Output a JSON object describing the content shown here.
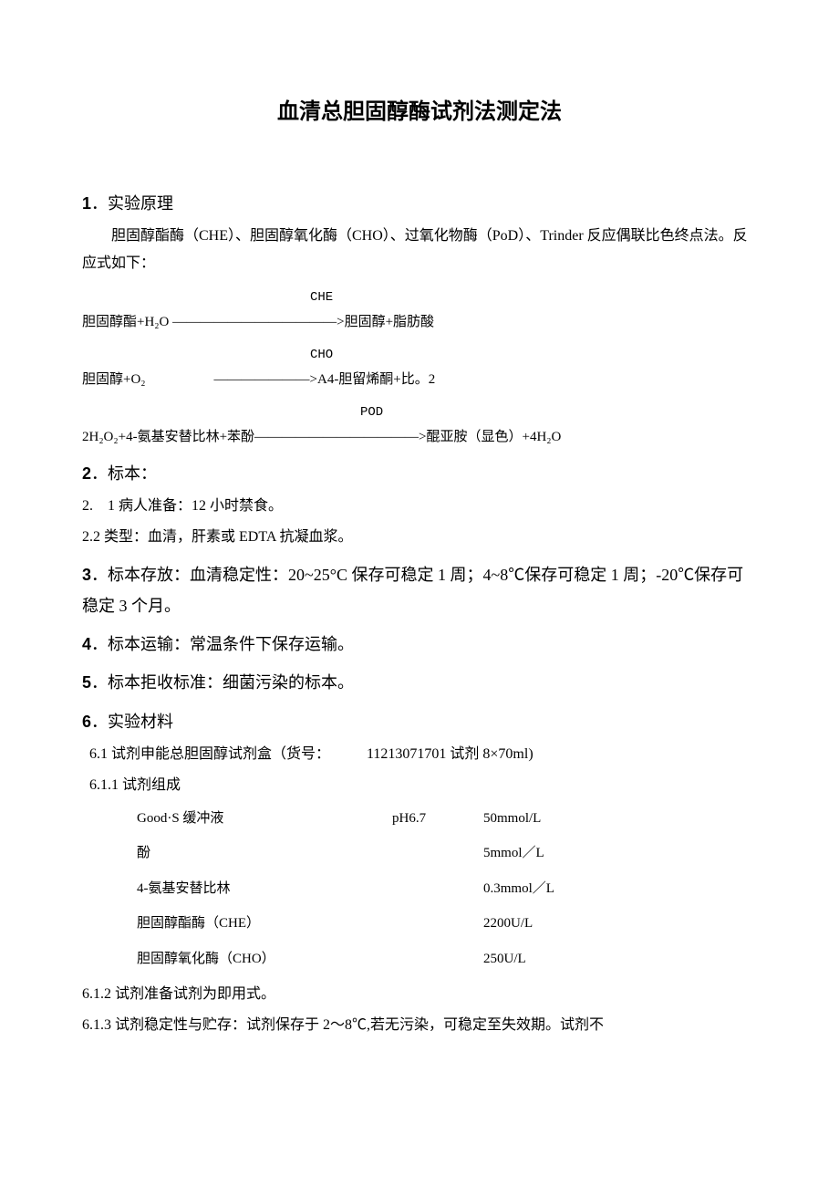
{
  "title": "血清总胆固醇酶试剂法测定法",
  "sections": {
    "s1": {
      "heading_num": "1",
      "heading_text": "．实验原理",
      "para1": "胆固醇酯酶（CHE）、胆固醇氧化酶（CHO）、过氧化物酶（PoD）、Trinder 反应偶联比色终点法。反应式如下：",
      "reaction1_label": "CHE",
      "reaction1": "胆固醇酯+H₂O ――――――――――――>胆固醇+脂肪酸",
      "reaction2_label": "CHO",
      "reaction2": "胆固醇+O₂　　　　　―――――――>A4-胆留烯酮+比。2",
      "reaction3_label": "POD",
      "reaction3": "2H₂O₂+4-氨基安替比林+苯酚――――――――――――>醌亚胺（显色）+4H₂O"
    },
    "s2": {
      "heading_num": "2",
      "heading_text": "．标本：",
      "item1": "2.　1 病人准备：12 小时禁食。",
      "item2": "2.2 类型：血清，肝素或 EDTA 抗凝血浆。"
    },
    "s3": {
      "heading_num": "3",
      "heading_text": "．标本存放：血清稳定性：20~25°C 保存可稳定 1 周；4~8℃保存可稳定 1 周；-20℃保存可稳定 3 个月。"
    },
    "s4": {
      "heading_num": "4",
      "heading_text": "．标本运输：常温条件下保存运输。"
    },
    "s5": {
      "heading_num": "5",
      "heading_text": "．标本拒收标准：细菌污染的标本。"
    },
    "s6": {
      "heading_num": "6",
      "heading_text": "．实验材料",
      "item1": "6.1 试剂申能总胆固醇试剂盒（货号：　　　11213071701 试剂 8×70ml)",
      "item2": "6.1.1 试剂组成",
      "reagents": [
        {
          "name": "Good·S 缓冲液",
          "ph": "pH6.7",
          "value": "50mmol/L"
        },
        {
          "name": "酚",
          "ph": "",
          "value": "5mmol／L"
        },
        {
          "name": "4-氨基安替比林",
          "ph": "",
          "value": "0.3mmol／L"
        },
        {
          "name": "胆固醇酯酶（CHE）",
          "ph": "",
          "value": "2200U/L"
        },
        {
          "name": "胆固醇氧化酶（CHO）",
          "ph": "",
          "value": "250U/L"
        }
      ],
      "item3": "6.1.2 试剂准备试剂为即用式。",
      "item4": "6.1.3 试剂稳定性与贮存：试剂保存于 2～8℃,若无污染，可稳定至失效期。试剂不"
    }
  },
  "colors": {
    "background": "#ffffff",
    "text": "#000000"
  }
}
